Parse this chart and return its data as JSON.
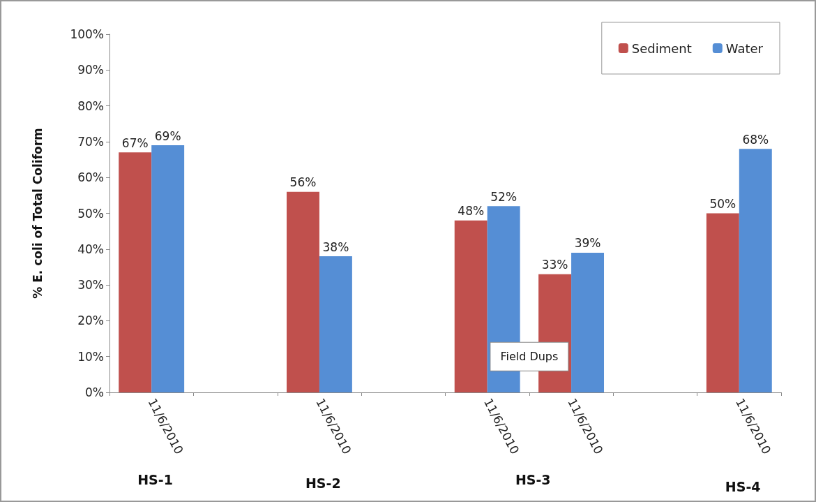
{
  "chart_data": {
    "type": "bar",
    "ylabel": "% E. coli of Total Coliform",
    "categories": [
      "11/6/2010",
      null,
      "11/6/2010",
      null,
      "11/6/2010",
      "11/6/2010",
      null,
      "11/6/2010"
    ],
    "series": [
      {
        "name": "Sediment",
        "color": "#c0504d",
        "values": [
          67,
          null,
          56,
          null,
          48,
          33,
          null,
          50
        ],
        "value_labels": [
          "67%",
          null,
          "56%",
          null,
          "48%",
          "33%",
          null,
          "50%"
        ]
      },
      {
        "name": "Water",
        "color": "#558ed5",
        "values": [
          69,
          null,
          38,
          null,
          52,
          39,
          null,
          68
        ],
        "value_labels": [
          "69%",
          null,
          "38%",
          null,
          "52%",
          "39%",
          null,
          "68%"
        ]
      }
    ],
    "ylim": [
      0,
      100
    ],
    "yticks": [
      {
        "value": 0,
        "label": "0%"
      },
      {
        "value": 10,
        "label": "10%"
      },
      {
        "value": 20,
        "label": "20%"
      },
      {
        "value": 30,
        "label": "30%"
      },
      {
        "value": 40,
        "label": "40%"
      },
      {
        "value": 50,
        "label": "50%"
      },
      {
        "value": 60,
        "label": "60%"
      },
      {
        "value": 70,
        "label": "70%"
      },
      {
        "value": 80,
        "label": "80%"
      },
      {
        "value": 90,
        "label": "90%"
      },
      {
        "value": 100,
        "label": "100%"
      }
    ],
    "grid": false,
    "legend": "top right",
    "annotations": [
      "HS-1",
      "HS-2",
      "HS-3",
      "HS-4",
      "Field Dups"
    ]
  }
}
